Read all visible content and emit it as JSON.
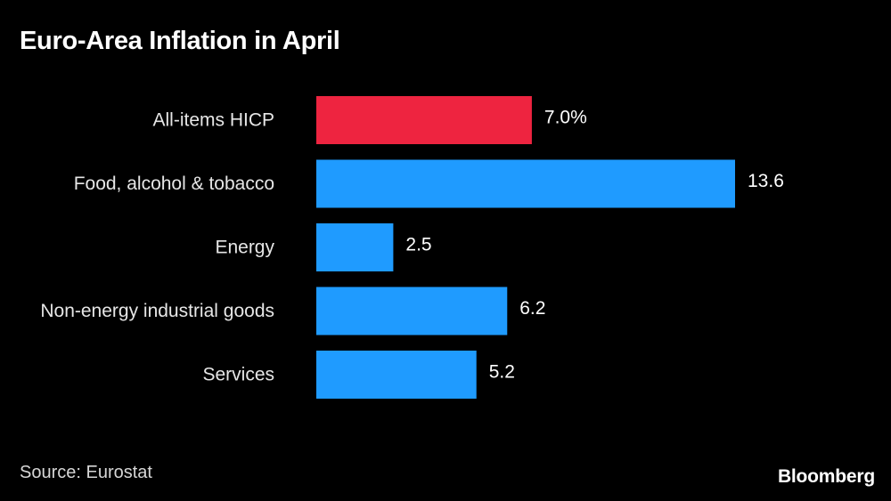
{
  "chart_data": {
    "type": "bar",
    "orientation": "horizontal",
    "title": "Euro-Area Inflation in April",
    "categories": [
      "All-items HICP",
      "Food, alcohol & tobacco",
      "Energy",
      "Non-energy industrial goods",
      "Services"
    ],
    "values": [
      7.0,
      13.6,
      2.5,
      6.2,
      5.2
    ],
    "value_labels": [
      "7.0%",
      "13.6",
      "2.5",
      "6.2",
      "5.2"
    ],
    "bar_colors": [
      "#ee2440",
      "#1f9bff",
      "#1f9bff",
      "#1f9bff",
      "#1f9bff"
    ],
    "xlabel": "",
    "ylabel": "",
    "xlim": [
      0,
      13.6
    ],
    "grid": false,
    "legend": "none"
  },
  "footer": {
    "source": "Source: Eurostat",
    "brand": "Bloomberg"
  },
  "colors": {
    "background": "#000000",
    "highlight": "#ee2440",
    "bar": "#1f9bff",
    "text": "#ffffff"
  }
}
